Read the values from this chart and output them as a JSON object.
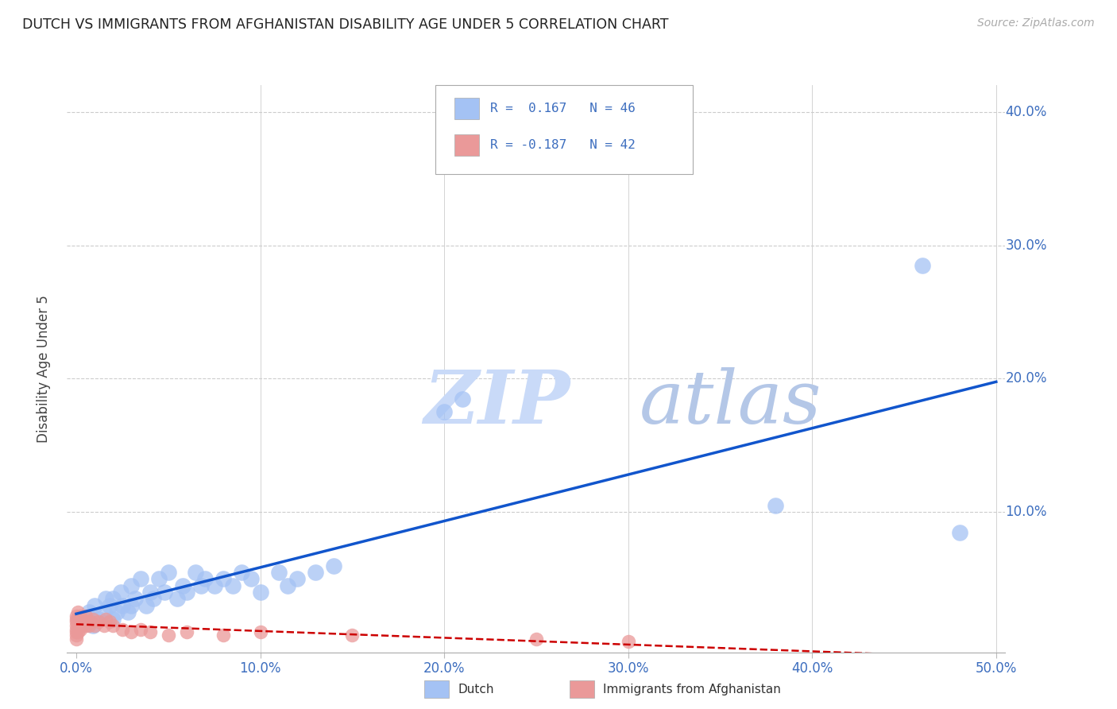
{
  "title": "DUTCH VS IMMIGRANTS FROM AFGHANISTAN DISABILITY AGE UNDER 5 CORRELATION CHART",
  "source": "Source: ZipAtlas.com",
  "ylabel": "Disability Age Under 5",
  "xlabel_dutch": "Dutch",
  "xlabel_afghan": "Immigrants from Afghanistan",
  "xlim": [
    -0.005,
    0.505
  ],
  "ylim": [
    -0.005,
    0.42
  ],
  "xticks": [
    0.0,
    0.1,
    0.2,
    0.3,
    0.4,
    0.5
  ],
  "yticks": [
    0.0,
    0.1,
    0.2,
    0.3,
    0.4
  ],
  "ytick_labels": [
    "",
    "10.0%",
    "20.0%",
    "30.0%",
    "40.0%"
  ],
  "xtick_labels": [
    "0.0%",
    "10.0%",
    "20.0%",
    "30.0%",
    "40.0%",
    "50.0%"
  ],
  "dutch_R": 0.167,
  "dutch_N": 46,
  "afghan_R": -0.187,
  "afghan_N": 42,
  "dutch_color": "#a4c2f4",
  "afghan_color": "#ea9999",
  "dutch_line_color": "#1155cc",
  "afghan_line_color": "#cc0000",
  "watermark_zip_color": "#c9daf8",
  "watermark_atlas_color": "#b4c7e7",
  "background_color": "#ffffff",
  "dutch_x": [
    0.005,
    0.007,
    0.009,
    0.01,
    0.012,
    0.015,
    0.016,
    0.018,
    0.02,
    0.02,
    0.022,
    0.024,
    0.025,
    0.028,
    0.03,
    0.03,
    0.032,
    0.035,
    0.038,
    0.04,
    0.042,
    0.045,
    0.048,
    0.05,
    0.055,
    0.058,
    0.06,
    0.065,
    0.068,
    0.07,
    0.075,
    0.08,
    0.085,
    0.09,
    0.095,
    0.1,
    0.11,
    0.115,
    0.12,
    0.13,
    0.14,
    0.2,
    0.21,
    0.38,
    0.46,
    0.48
  ],
  "dutch_y": [
    0.02,
    0.025,
    0.015,
    0.03,
    0.02,
    0.025,
    0.035,
    0.03,
    0.02,
    0.035,
    0.025,
    0.04,
    0.03,
    0.025,
    0.03,
    0.045,
    0.035,
    0.05,
    0.03,
    0.04,
    0.035,
    0.05,
    0.04,
    0.055,
    0.035,
    0.045,
    0.04,
    0.055,
    0.045,
    0.05,
    0.045,
    0.05,
    0.045,
    0.055,
    0.05,
    0.04,
    0.055,
    0.045,
    0.05,
    0.055,
    0.06,
    0.175,
    0.185,
    0.105,
    0.285,
    0.085
  ],
  "afghan_x": [
    0.0,
    0.0,
    0.0,
    0.0,
    0.0,
    0.0,
    0.0,
    0.0,
    0.001,
    0.001,
    0.001,
    0.001,
    0.001,
    0.002,
    0.002,
    0.002,
    0.003,
    0.003,
    0.004,
    0.005,
    0.005,
    0.006,
    0.007,
    0.008,
    0.009,
    0.01,
    0.012,
    0.015,
    0.016,
    0.018,
    0.02,
    0.025,
    0.03,
    0.035,
    0.04,
    0.05,
    0.06,
    0.08,
    0.1,
    0.15,
    0.25,
    0.3
  ],
  "afghan_y": [
    0.005,
    0.008,
    0.01,
    0.012,
    0.015,
    0.018,
    0.02,
    0.022,
    0.01,
    0.015,
    0.018,
    0.02,
    0.025,
    0.012,
    0.018,
    0.022,
    0.015,
    0.02,
    0.018,
    0.015,
    0.022,
    0.018,
    0.015,
    0.018,
    0.02,
    0.015,
    0.018,
    0.015,
    0.02,
    0.018,
    0.015,
    0.012,
    0.01,
    0.012,
    0.01,
    0.008,
    0.01,
    0.008,
    0.01,
    0.008,
    0.005,
    0.003
  ]
}
